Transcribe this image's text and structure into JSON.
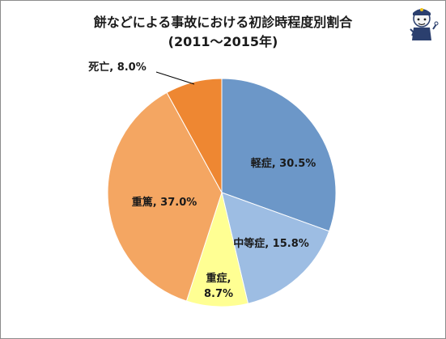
{
  "colors": {
    "keishou": "#6C97C8",
    "chuutou": "#9DBDE3",
    "juushou": "#FFFF93",
    "juutoku": "#F4A662",
    "shibou": "#EE8732",
    "border": "#ffffff",
    "label_text": "#1a1a1a"
  },
  "mascot_icon": "police-mascot-icon",
  "chart_data": {
    "type": "pie",
    "title": "餅などによる事故における初診時程度別割合",
    "subtitle": "(2011～2015年)",
    "slices": [
      {
        "label": "軽症",
        "value": 30.5,
        "value_text": "30.5%",
        "text": "軽症, 30.5%"
      },
      {
        "label": "中等症",
        "value": 15.8,
        "value_text": "15.8%",
        "text": "中等症, 15.8%"
      },
      {
        "label": "重症",
        "value": 8.7,
        "value_text": "8.7%",
        "text": "重症,",
        "text2": "8.7%"
      },
      {
        "label": "重篤",
        "value": 37.0,
        "value_text": "37.0%",
        "text": "重篤, 37.0%"
      },
      {
        "label": "死亡",
        "value": 8.0,
        "value_text": "8.0%",
        "text": "死亡, 8.0%"
      }
    ],
    "start_angle_deg": 0,
    "direction": "clockwise"
  }
}
